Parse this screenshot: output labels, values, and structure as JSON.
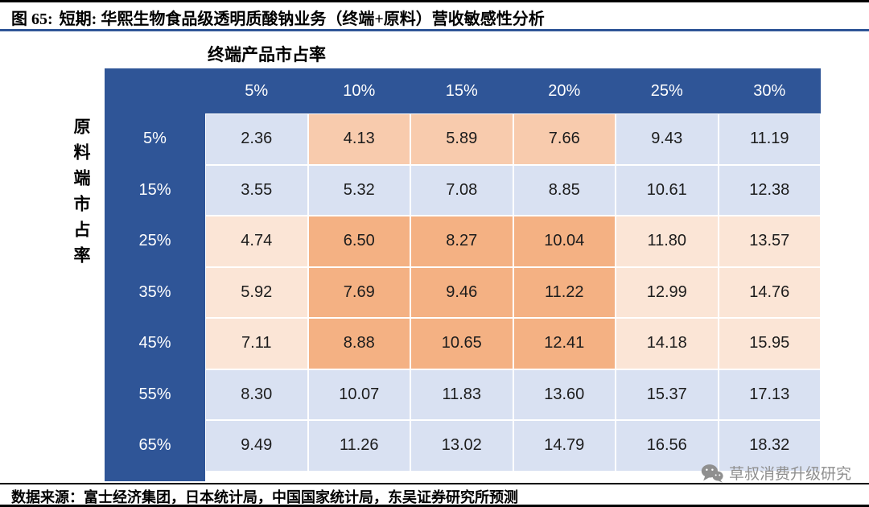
{
  "figure": {
    "title_prefix": "图 65:",
    "title": "短期:  华熙生物食品级透明质酸钠业务（终端+原料）营收敏感性分析"
  },
  "table": {
    "top_axis_label": "终端产品市占率",
    "left_axis_label": "原料端市占率",
    "cell_fills": [
      [
        "blue",
        "orange_mid",
        "orange_mid",
        "orange_mid",
        "blue",
        "blue"
      ],
      [
        "blue",
        "blue",
        "blue",
        "blue",
        "blue",
        "blue"
      ],
      [
        "peach",
        "orange",
        "orange",
        "orange",
        "peach",
        "peach"
      ],
      [
        "peach",
        "orange",
        "orange",
        "orange",
        "peach",
        "peach"
      ],
      [
        "peach",
        "orange",
        "orange",
        "orange",
        "peach",
        "peach"
      ],
      [
        "blue",
        "blue",
        "blue",
        "blue",
        "blue",
        "blue"
      ],
      [
        "blue",
        "blue",
        "blue",
        "blue",
        "blue",
        "blue"
      ]
    ]
  },
  "chart_data": {
    "type": "table",
    "title": "短期: 华熙生物食品级透明质酸钠业务（终端+原料）营收敏感性分析",
    "x_axis_label": "终端产品市占率",
    "y_axis_label": "原料端市占率",
    "columns": [
      "5%",
      "10%",
      "15%",
      "20%",
      "25%",
      "30%"
    ],
    "rows": [
      "5%",
      "15%",
      "25%",
      "35%",
      "45%",
      "55%",
      "65%"
    ],
    "values": [
      [
        2.36,
        4.13,
        5.89,
        7.66,
        9.43,
        11.19
      ],
      [
        3.55,
        5.32,
        7.08,
        8.85,
        10.61,
        12.38
      ],
      [
        4.74,
        6.5,
        8.27,
        10.04,
        11.8,
        13.57
      ],
      [
        5.92,
        7.69,
        9.46,
        11.22,
        12.99,
        14.76
      ],
      [
        7.11,
        8.88,
        10.65,
        12.41,
        14.18,
        15.95
      ],
      [
        8.3,
        10.07,
        11.83,
        13.6,
        15.37,
        17.13
      ],
      [
        9.49,
        11.26,
        13.02,
        14.79,
        16.56,
        18.32
      ]
    ]
  },
  "colors": {
    "header": "#2F5597",
    "blue": "#D9E1F2",
    "peach": "#FBE5D6",
    "orange_mid": "#F8CBAD",
    "orange": "#F4B183"
  },
  "footer": {
    "source": "数据来源：富士经济集团，日本统计局，中国国家统计局，东吴证券研究所预测"
  },
  "watermark": {
    "text": "草叔消费升级研究"
  }
}
